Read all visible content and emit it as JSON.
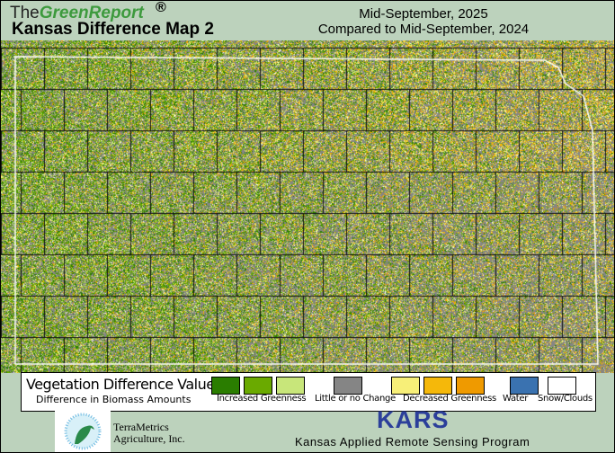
{
  "header": {
    "brand_the": "The",
    "brand_name": "GreenReport",
    "registered": "®",
    "title": "Kansas Difference Map 2",
    "date_line": "Mid-September, 2025",
    "compare_line": "Compared to Mid-September, 2024"
  },
  "legend": {
    "title": "Vegetation Difference Values",
    "subtitle": "Difference in Biomass Amounts",
    "swatches": {
      "increased": [
        "#2a7d00",
        "#6aaa00",
        "#c8e67a"
      ],
      "no_change": "#858585",
      "decreased": [
        "#f7ef78",
        "#f5b80a",
        "#ef9a00"
      ],
      "water": "#3a72b0",
      "snow": "#ffffff"
    },
    "labels": {
      "increased": "Increased Greenness",
      "no_change": "Little or no Change",
      "decreased": "Decreased Greenness",
      "water": "Water",
      "snow": "Snow/Clouds"
    }
  },
  "footer": {
    "terrametrics_1": "TerraMetrics",
    "terrametrics_2": "Agriculture, Inc.",
    "kars": "KARS",
    "kars_full": "Kansas Applied Remote Sensing Program"
  }
}
